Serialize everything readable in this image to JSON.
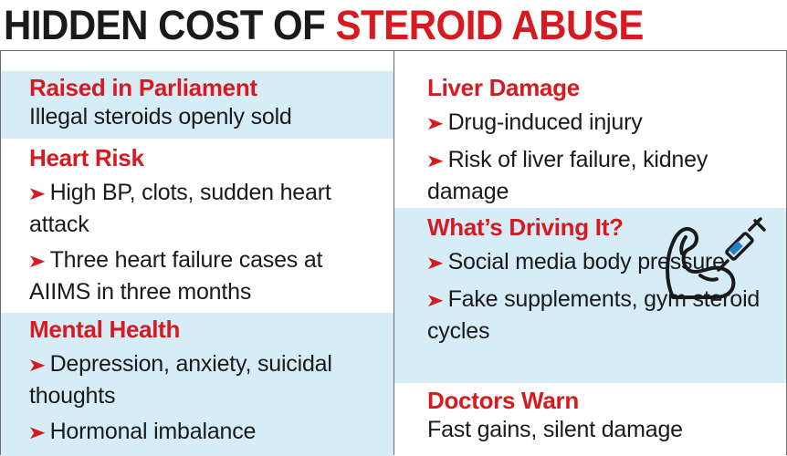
{
  "headline": {
    "dark": "HIDDEN COST OF",
    "red": "STEROID ABUSE"
  },
  "colors": {
    "accent_red": "#d71920",
    "panel_blue": "#d6edf8",
    "text_dark": "#1a1a1a"
  },
  "left": {
    "parliament": {
      "title": "Raised in Parliament",
      "line": "Illegal steroids openly sold"
    },
    "heart": {
      "title": "Heart Risk",
      "bullets": [
        "High BP, clots, sudden heart attack",
        "Three heart failure cases at AIIMS in three months"
      ]
    },
    "mental": {
      "title": "Mental Health",
      "bullets": [
        "Depression, anxiety, suicidal thoughts",
        "Hormonal imbalance"
      ]
    }
  },
  "right": {
    "liver": {
      "title": "Liver Damage",
      "bullets": [
        "Drug-induced injury",
        "Risk of liver failure, kidney damage"
      ]
    },
    "driving": {
      "title": "What’s Driving It?",
      "icon": "flexed-arm-syringe-icon",
      "bullets": [
        "Social media body pressure",
        "Fake supplements, gym steroid cycles"
      ]
    },
    "doctors": {
      "title": "Doctors Warn",
      "line": "Fast gains, silent damage"
    }
  }
}
